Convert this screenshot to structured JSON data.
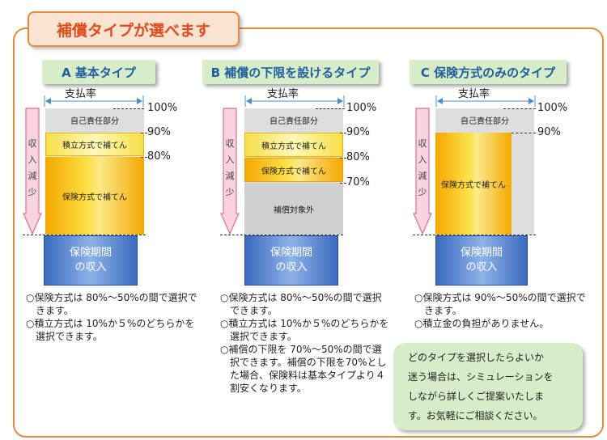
{
  "title": "補償タイプが選べます",
  "panels": [
    {
      "title": "A 基本タイプ",
      "pay_rate_label": "支払率",
      "levels": [
        "100%",
        "90%",
        "80%"
      ],
      "self_label": "自己責任部分",
      "reserve_label": "積立方式で補てん",
      "insurance_label": "保険方式で補てん",
      "income_label_1": "保険期間",
      "income_label_2": "の収入",
      "arrow_chars": [
        "収",
        "入",
        "減",
        "少"
      ],
      "notes": [
        "○保険方式は 80%～50%の間で選択できます。",
        "○積立方式は 10%か５%のどちらかを選択できます。"
      ]
    },
    {
      "title": "B 補償の下限を設けるタイプ",
      "pay_rate_label": "支払率",
      "levels": [
        "100%",
        "90%",
        "80%",
        "70%"
      ],
      "self_label": "自己責任部分",
      "reserve_label": "積立方式で補てん",
      "insurance_label": "保険方式で補てん",
      "excluded_label": "補償対象外",
      "income_label_1": "保険期間",
      "income_label_2": "の収入",
      "arrow_chars": [
        "収",
        "入",
        "減",
        "少"
      ],
      "notes": [
        "○保険方式は 80%～50%の間で選択できます。",
        "○積立方式は 10%か５%のどちらかを選択できます。",
        "○補償の下限を 70%～50%の間で選択できます。補償の下限を70%とした場合、保険料は基本タイプより４割安くなります。"
      ]
    },
    {
      "title": "C 保険方式のみのタイプ",
      "pay_rate_label": "支払率",
      "levels": [
        "100%",
        "90%"
      ],
      "self_label": "自己責任部分",
      "insurance_label": "保険方式で補てん",
      "income_label_1": "保険期間",
      "income_label_2": "の収入",
      "arrow_chars": [
        "収",
        "入",
        "減",
        "少"
      ],
      "notes": [
        "○保険方式は 90%～50%の間で選択できます。",
        "○積立金の負担がありません。"
      ]
    }
  ],
  "recommendation": [
    "どのタイプを選択したらよいか",
    "迷う場合は、シミュレーションを",
    "しながら詳しくご提案いたしま",
    "す。お気軽にご相談ください。"
  ]
}
